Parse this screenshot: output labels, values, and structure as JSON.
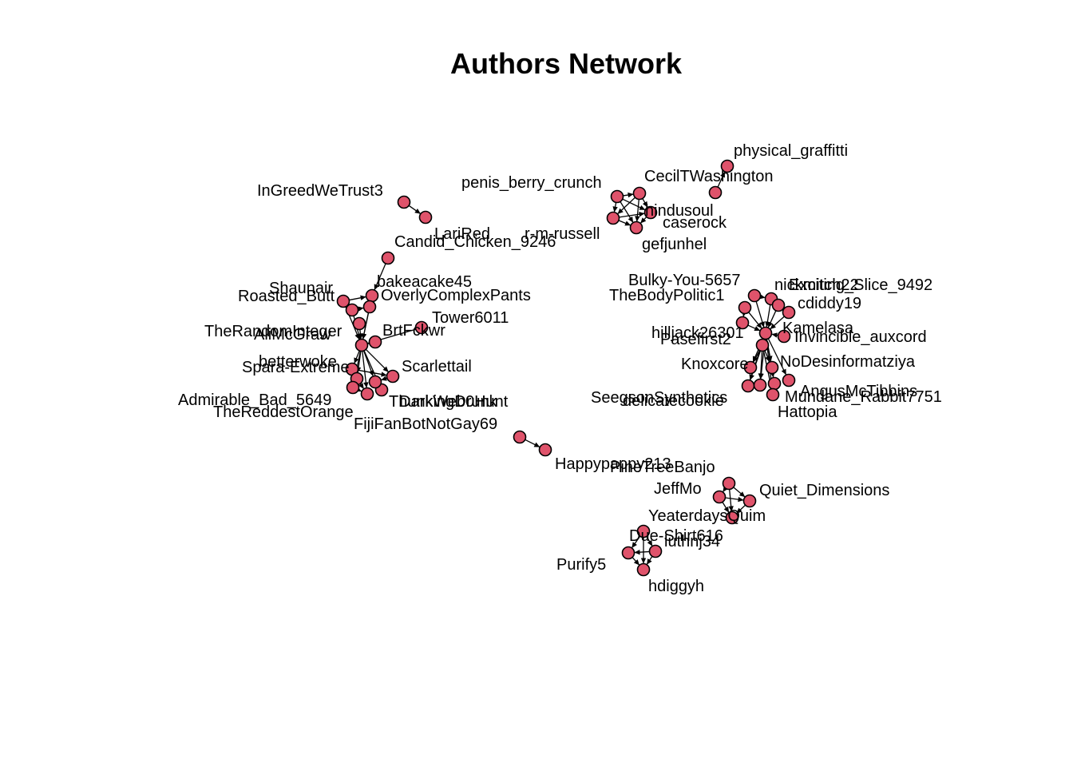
{
  "title": "Authors Network",
  "colors": {
    "node_fill": "#DF536B",
    "node_stroke": "#000000",
    "edge": "#000000",
    "text": "#000000",
    "background": "#ffffff"
  },
  "nodes": [
    {
      "id": "physical_graffitti",
      "label": "physical_graffitti"
    },
    {
      "id": "CecilTWashington",
      "label": "CecilTWashington"
    },
    {
      "id": "penis_berry_crunch",
      "label": "penis_berry_crunch"
    },
    {
      "id": "hindusoul",
      "label": "hindusoul"
    },
    {
      "id": "caserock",
      "label": "caserock"
    },
    {
      "id": "gefjunhel",
      "label": "gefjunhel"
    },
    {
      "id": "r-m-russell",
      "label": "r-m-russell"
    },
    {
      "id": "InGreedWeTrust3",
      "label": "InGreedWeTrust3"
    },
    {
      "id": "LariRed",
      "label": "LariRed"
    },
    {
      "id": "Candid_Chicken_9246",
      "label": "Candid_Chicken_9246"
    },
    {
      "id": "bakeacake45",
      "label": "bakeacake45"
    },
    {
      "id": "Shaunair",
      "label": "Shaunair"
    },
    {
      "id": "Roasted_Butt",
      "label": "Roasted_Butt"
    },
    {
      "id": "OverlyComplexPants",
      "label": "OverlyComplexPants"
    },
    {
      "id": "Tower6011",
      "label": "Tower6011"
    },
    {
      "id": "TheRandomInteger",
      "label": "TheRandomInteger"
    },
    {
      "id": "AliMcGraw",
      "label": "AliMcGraw"
    },
    {
      "id": "BrtFckwr",
      "label": "BrtFckwr"
    },
    {
      "id": "betterwoke",
      "label": "betterwoke"
    },
    {
      "id": "Spara-Extreme",
      "label": "Spara-Extreme"
    },
    {
      "id": "Scarlettail",
      "label": "Scarlettail"
    },
    {
      "id": "Admirable_Bad_5649",
      "label": "Admirable_Bad_5649"
    },
    {
      "id": "TheReddestOrange",
      "label": "TheReddestOrange"
    },
    {
      "id": "ThunkingDrunk",
      "label": "ThunkingDrunk"
    },
    {
      "id": "DarkWeb0Hunt",
      "label": "DarkWeb0Hunt"
    },
    {
      "id": "FijiFanBotNotGay69",
      "label": "FijiFanBotNotGay69"
    },
    {
      "id": "Happypappy213",
      "label": "Happypappy213"
    },
    {
      "id": "PineTreeBanjo",
      "label": "PineTreeBanjo"
    },
    {
      "id": "JeffMo",
      "label": "JeffMo"
    },
    {
      "id": "Quiet_Dimensions",
      "label": "Quiet_Dimensions"
    },
    {
      "id": "YeaterdaysQuim",
      "label": "YeaterdaysQuim"
    },
    {
      "id": "Due-Shirt616",
      "label": "Due-Shirt616"
    },
    {
      "id": "luthnj34",
      "label": "luthnj34"
    },
    {
      "id": "Purify5",
      "label": "Purify5"
    },
    {
      "id": "hdiggyh",
      "label": "hdiggyh"
    },
    {
      "id": "Bulky-You-5657",
      "label": "Bulky-You-5657"
    },
    {
      "id": "nickmitch22",
      "label": "nickmitch22"
    },
    {
      "id": "Exciting_Slice_9492",
      "label": "Exciting_Slice_9492"
    },
    {
      "id": "TheBodyPolitic1",
      "label": "TheBodyPolitic1"
    },
    {
      "id": "cdiddy19",
      "label": "cdiddy19"
    },
    {
      "id": "hilljack26301",
      "label": "hilljack26301"
    },
    {
      "id": "Kamelasa",
      "label": "Kamelasa"
    },
    {
      "id": "Pasefirst2",
      "label": "Pasefirst2"
    },
    {
      "id": "Invincible_auxcord",
      "label": "Invincible_auxcord"
    },
    {
      "id": "Knoxcore",
      "label": "Knoxcore"
    },
    {
      "id": "NoDesinformatziya",
      "label": "NoDesinformatziya"
    },
    {
      "id": "AngusMcTibbins",
      "label": "AngusMcTibbins"
    },
    {
      "id": "SeegsonSynthetics",
      "label": "SeegsonSynthetics"
    },
    {
      "id": "delicatecookie",
      "label": "delicatecookie"
    },
    {
      "id": "Mundane_Rabbit7751",
      "label": "Mundane_Rabbit7751"
    },
    {
      "id": "Hattopia",
      "label": "Hattopia"
    }
  ],
  "edges": [
    [
      "CecilTWashington",
      "physical_graffitti"
    ],
    [
      "penis_berry_crunch",
      "hindusoul"
    ],
    [
      "penis_berry_crunch",
      "caserock"
    ],
    [
      "penis_berry_crunch",
      "gefjunhel"
    ],
    [
      "penis_berry_crunch",
      "r-m-russell"
    ],
    [
      "hindusoul",
      "caserock"
    ],
    [
      "hindusoul",
      "gefjunhel"
    ],
    [
      "hindusoul",
      "r-m-russell"
    ],
    [
      "caserock",
      "gefjunhel"
    ],
    [
      "r-m-russell",
      "gefjunhel"
    ],
    [
      "r-m-russell",
      "caserock"
    ],
    [
      "InGreedWeTrust3",
      "LariRed"
    ],
    [
      "Candid_Chicken_9246",
      "bakeacake45"
    ],
    [
      "bakeacake45",
      "AliMcGraw"
    ],
    [
      "OverlyComplexPants",
      "AliMcGraw"
    ],
    [
      "Shaunair",
      "AliMcGraw"
    ],
    [
      "Roasted_Butt",
      "AliMcGraw"
    ],
    [
      "Roasted_Butt",
      "OverlyComplexPants"
    ],
    [
      "Shaunair",
      "bakeacake45"
    ],
    [
      "TheRandomInteger",
      "AliMcGraw"
    ],
    [
      "Tower6011",
      "AliMcGraw"
    ],
    [
      "BrtFckwr",
      "AliMcGraw"
    ],
    [
      "AliMcGraw",
      "betterwoke"
    ],
    [
      "AliMcGraw",
      "Spara-Extreme"
    ],
    [
      "AliMcGraw",
      "Scarlettail"
    ],
    [
      "AliMcGraw",
      "Admirable_Bad_5649"
    ],
    [
      "AliMcGraw",
      "TheReddestOrange"
    ],
    [
      "AliMcGraw",
      "ThunkingDrunk"
    ],
    [
      "AliMcGraw",
      "DarkWeb0Hunt"
    ],
    [
      "betterwoke",
      "Spara-Extreme"
    ],
    [
      "betterwoke",
      "Scarlettail"
    ],
    [
      "Spara-Extreme",
      "TheReddestOrange"
    ],
    [
      "Scarlettail",
      "DarkWeb0Hunt"
    ],
    [
      "ThunkingDrunk",
      "DarkWeb0Hunt"
    ],
    [
      "Admirable_Bad_5649",
      "TheReddestOrange"
    ],
    [
      "FijiFanBotNotGay69",
      "Happypappy213"
    ],
    [
      "PineTreeBanjo",
      "JeffMo"
    ],
    [
      "PineTreeBanjo",
      "Quiet_Dimensions"
    ],
    [
      "PineTreeBanjo",
      "YeaterdaysQuim"
    ],
    [
      "JeffMo",
      "Quiet_Dimensions"
    ],
    [
      "JeffMo",
      "YeaterdaysQuim"
    ],
    [
      "Quiet_Dimensions",
      "YeaterdaysQuim"
    ],
    [
      "Due-Shirt616",
      "luthnj34"
    ],
    [
      "Due-Shirt616",
      "Purify5"
    ],
    [
      "Due-Shirt616",
      "hdiggyh"
    ],
    [
      "luthnj34",
      "Purify5"
    ],
    [
      "luthnj34",
      "hdiggyh"
    ],
    [
      "Purify5",
      "hdiggyh"
    ],
    [
      "Bulky-You-5657",
      "Kamelasa"
    ],
    [
      "nickmitch22",
      "Kamelasa"
    ],
    [
      "Exciting_Slice_9492",
      "Kamelasa"
    ],
    [
      "TheBodyPolitic1",
      "Kamelasa"
    ],
    [
      "cdiddy19",
      "Kamelasa"
    ],
    [
      "hilljack26301",
      "Kamelasa"
    ],
    [
      "Pasefirst2",
      "Kamelasa"
    ],
    [
      "Invincible_auxcord",
      "Kamelasa"
    ],
    [
      "Kamelasa",
      "Knoxcore"
    ],
    [
      "Kamelasa",
      "NoDesinformatziya"
    ],
    [
      "Kamelasa",
      "AngusMcTibbins"
    ],
    [
      "Kamelasa",
      "SeegsonSynthetics"
    ],
    [
      "Kamelasa",
      "delicatecookie"
    ],
    [
      "Kamelasa",
      "Mundane_Rabbit7751"
    ],
    [
      "Kamelasa",
      "Hattopia"
    ],
    [
      "Pasefirst2",
      "Knoxcore"
    ],
    [
      "Pasefirst2",
      "NoDesinformatziya"
    ],
    [
      "Pasefirst2",
      "SeegsonSynthetics"
    ],
    [
      "Pasefirst2",
      "delicatecookie"
    ],
    [
      "Pasefirst2",
      "Hattopia"
    ],
    [
      "Bulky-You-5657",
      "nickmitch22"
    ],
    [
      "TheBodyPolitic1",
      "hilljack26301"
    ],
    [
      "Exciting_Slice_9492",
      "cdiddy19"
    ]
  ]
}
